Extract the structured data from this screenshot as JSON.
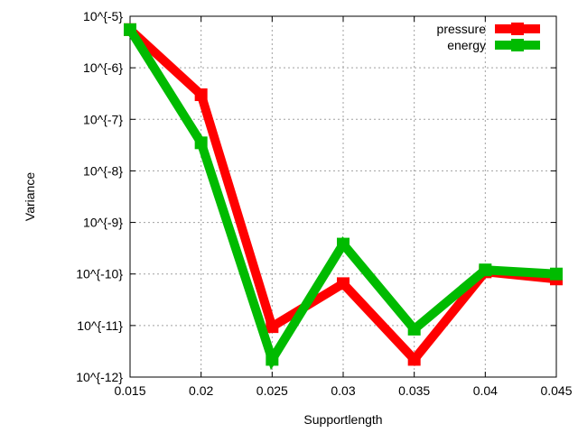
{
  "chart_data": {
    "type": "line",
    "xlabel": "Supportlength",
    "ylabel": "Variance",
    "x_ticks": [
      "0.015",
      "0.02",
      "0.025",
      "0.03",
      "0.035",
      "0.04",
      "0.045"
    ],
    "y_ticks": [
      "10^{-12}",
      "10^{-11}",
      "10^{-10}",
      "10^{-9}",
      "10^{-8}",
      "10^{-7}",
      "10^{-6}",
      "10^{-5}"
    ],
    "xlim": [
      0.015,
      0.045
    ],
    "ylim": [
      1e-12,
      1e-05
    ],
    "y_scale": "log",
    "grid": true,
    "legend_position": "top-right",
    "series": [
      {
        "name": "pressure",
        "color": "#ff0000",
        "x": [
          0.015,
          0.02,
          0.025,
          0.03,
          0.035,
          0.04,
          0.045
        ],
        "y": [
          5.5e-06,
          3e-07,
          9.5e-12,
          6.5e-11,
          2.2e-12,
          1.1e-10,
          8e-11
        ]
      },
      {
        "name": "energy",
        "color": "#00bb00",
        "x": [
          0.015,
          0.02,
          0.025,
          0.03,
          0.035,
          0.04,
          0.045
        ],
        "y": [
          5.5e-06,
          3.5e-08,
          2.2e-12,
          3.8e-10,
          8.5e-12,
          1.2e-10,
          1e-10
        ]
      }
    ]
  }
}
